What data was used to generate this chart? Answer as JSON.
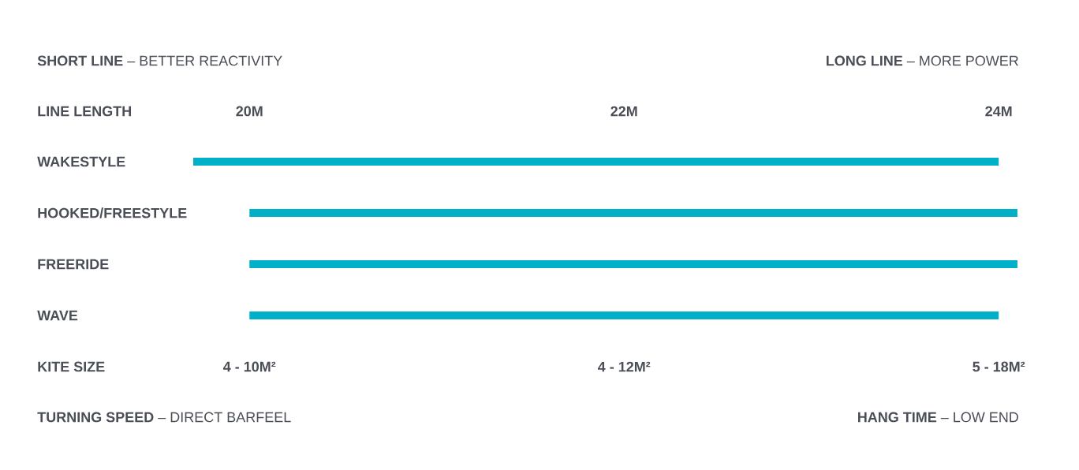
{
  "chart_data": {
    "type": "bar",
    "orientation": "horizontal",
    "annotations": [
      "**SHORT LINE** – BETTER REACTIVITY",
      "**LONG LINE** – MORE POWER",
      "**TURNING SPEED** – DIRECT BARFEEL",
      "**HANG TIME** – LOW END",
      "**KITE SIZE**",
      "**4 - 10M²**",
      "**4 - 12M²**",
      "**5 - 18M²**"
    ],
    "categories": [
      "WAKESTYLE",
      "HOOKED/FREESTYLE",
      "FREERIDE",
      "WAVE"
    ],
    "base": [
      19.7,
      20.0,
      20.0,
      20.0
    ],
    "values": [
      4.3,
      4.1,
      4.1,
      4.0
    ],
    "color": "#00b0c8",
    "xlabel": "LINE LENGTH",
    "xlim": [
      19.7,
      24.1
    ],
    "xticks": [
      {
        "value": 20,
        "label": "20M"
      },
      {
        "value": 22,
        "label": "22M"
      },
      {
        "value": 24,
        "label": "24M"
      }
    ]
  }
}
